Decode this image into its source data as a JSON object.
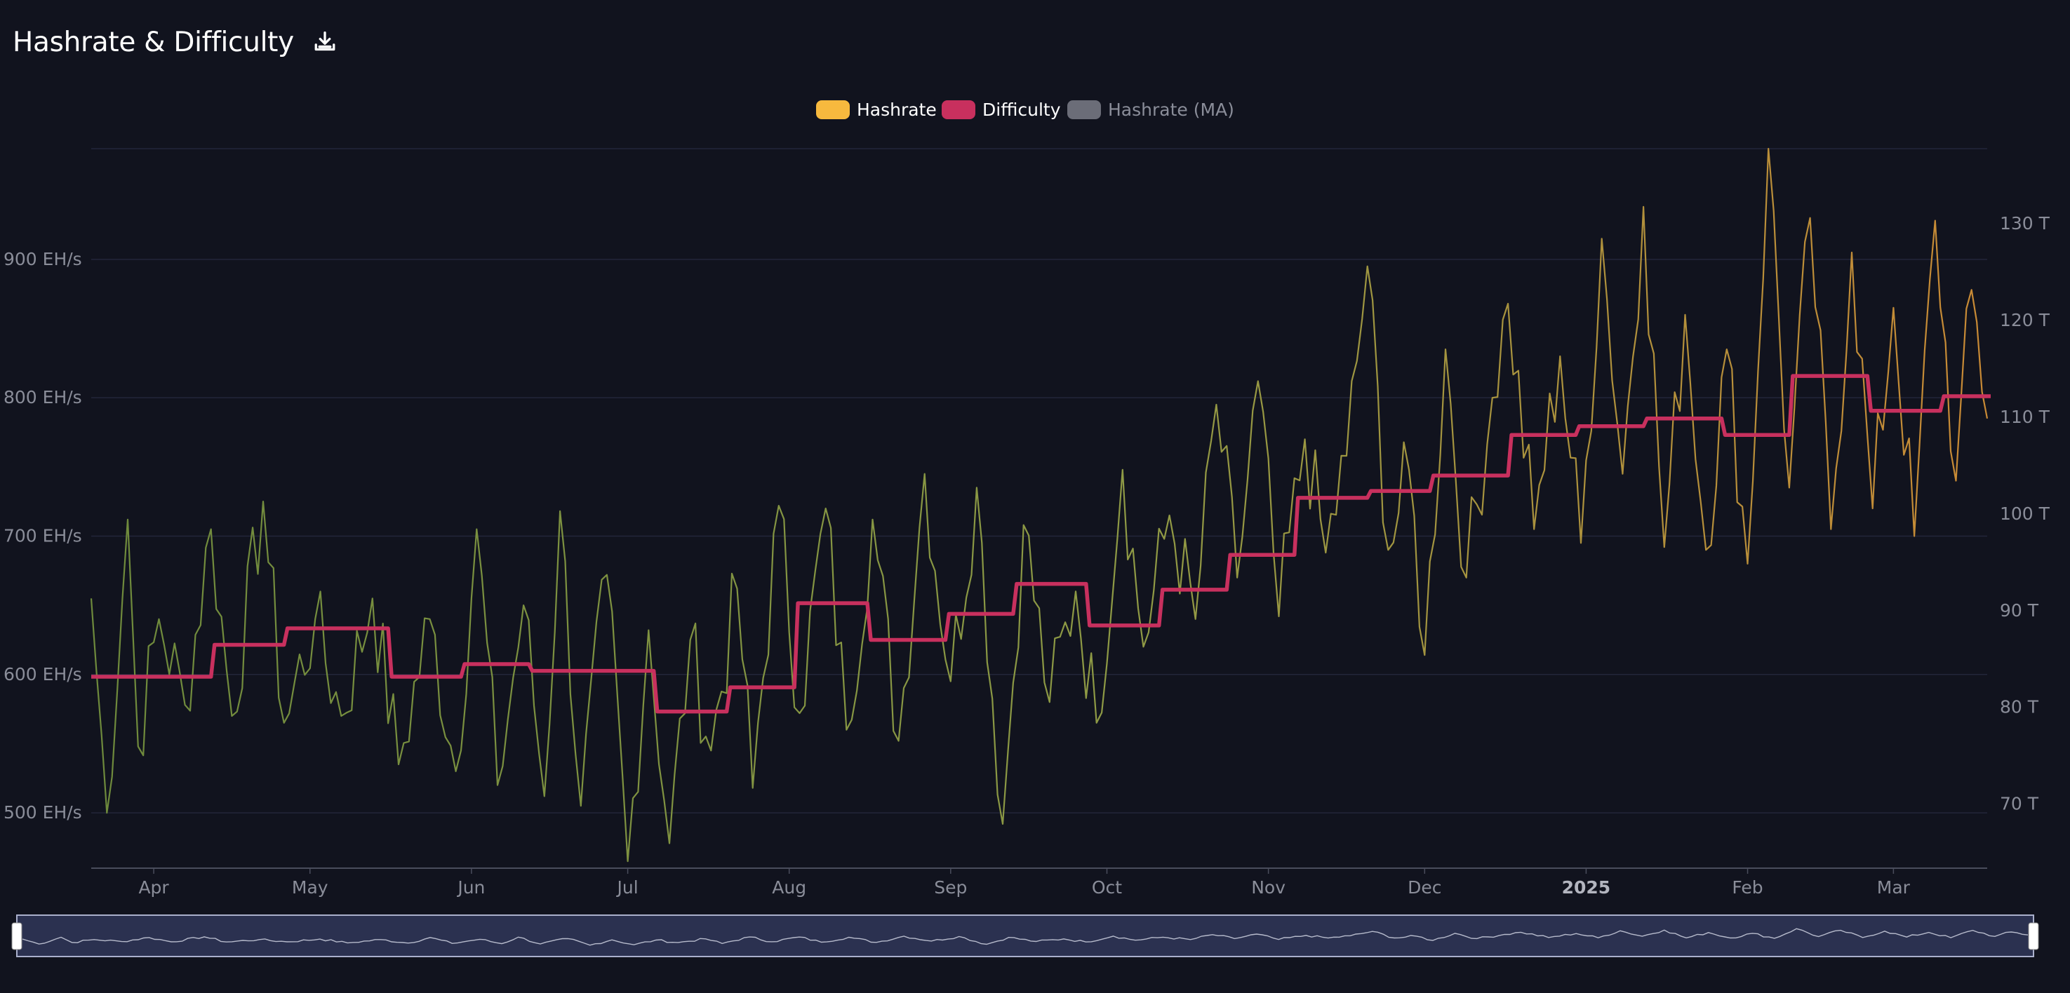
{
  "header": {
    "title": "Hashrate & Difficulty",
    "download_icon": "download-icon"
  },
  "colors": {
    "background": "#11131e",
    "hashrate_low": "#6e8a3c",
    "hashrate_high": "#c98a35",
    "difficulty": "#c8305e",
    "hashrate_ma": "#6b6d78",
    "grid": "#23263a",
    "navigator_fill": "#2b3150"
  },
  "chart_data": {
    "type": "line",
    "legend": [
      {
        "name": "Hashrate",
        "color": "#f7b93e",
        "active": true
      },
      {
        "name": "Difficulty",
        "color": "#c8305e",
        "active": true
      },
      {
        "name": "Hashrate (MA)",
        "color": "#6b6d78",
        "active": false
      }
    ],
    "legend_position": "top-center",
    "grid": true,
    "x_start": "2024-03-20",
    "x_end": "2025-03-19",
    "x_ticks": [
      {
        "date": "2024-04-01",
        "label": "Apr",
        "bold": false
      },
      {
        "date": "2024-05-01",
        "label": "May",
        "bold": false
      },
      {
        "date": "2024-06-01",
        "label": "Jun",
        "bold": false
      },
      {
        "date": "2024-07-01",
        "label": "Jul",
        "bold": false
      },
      {
        "date": "2024-08-01",
        "label": "Aug",
        "bold": false
      },
      {
        "date": "2024-09-01",
        "label": "Sep",
        "bold": false
      },
      {
        "date": "2024-10-01",
        "label": "Oct",
        "bold": false
      },
      {
        "date": "2024-11-01",
        "label": "Nov",
        "bold": false
      },
      {
        "date": "2024-12-01",
        "label": "Dec",
        "bold": false
      },
      {
        "date": "2025-01-01",
        "label": "2025",
        "bold": true
      },
      {
        "date": "2025-02-01",
        "label": "Feb",
        "bold": false
      },
      {
        "date": "2025-03-01",
        "label": "Mar",
        "bold": false
      }
    ],
    "y_left": {
      "unit": "EH/s",
      "range": [
        460,
        980
      ],
      "ticks": [
        {
          "value": 500,
          "label": "500 EH/s"
        },
        {
          "value": 600,
          "label": "600 EH/s"
        },
        {
          "value": 700,
          "label": "700 EH/s"
        },
        {
          "value": 800,
          "label": "800 EH/s"
        },
        {
          "value": 900,
          "label": "900 EH/s"
        }
      ]
    },
    "y_right": {
      "unit": "T",
      "range": [
        63.3,
        137.7
      ],
      "ticks": [
        {
          "value": 70,
          "label": "70 T"
        },
        {
          "value": 80,
          "label": "80 T"
        },
        {
          "value": 90,
          "label": "90 T"
        },
        {
          "value": 100,
          "label": "100 T"
        },
        {
          "value": 110,
          "label": "110 T"
        },
        {
          "value": 120,
          "label": "120 T"
        },
        {
          "value": 130,
          "label": "130 T"
        }
      ]
    },
    "series": [
      {
        "name": "Hashrate",
        "axis": "left",
        "anchors": [
          [
            "2024-03-20",
            655
          ],
          [
            "2024-03-23",
            500
          ],
          [
            "2024-03-27",
            712
          ],
          [
            "2024-03-29",
            548
          ],
          [
            "2024-04-02",
            640
          ],
          [
            "2024-04-07",
            578
          ],
          [
            "2024-04-12",
            705
          ],
          [
            "2024-04-16",
            570
          ],
          [
            "2024-04-22",
            725
          ],
          [
            "2024-04-26",
            565
          ],
          [
            "2024-05-02",
            640
          ],
          [
            "2024-05-07",
            570
          ],
          [
            "2024-05-13",
            655
          ],
          [
            "2024-05-18",
            535
          ],
          [
            "2024-05-24",
            640
          ],
          [
            "2024-05-29",
            530
          ],
          [
            "2024-06-02",
            705
          ],
          [
            "2024-06-06",
            520
          ],
          [
            "2024-06-11",
            650
          ],
          [
            "2024-06-15",
            512
          ],
          [
            "2024-06-18",
            718
          ],
          [
            "2024-06-22",
            505
          ],
          [
            "2024-06-27",
            672
          ],
          [
            "2024-07-01",
            465
          ],
          [
            "2024-07-05",
            632
          ],
          [
            "2024-07-09",
            478
          ],
          [
            "2024-07-13",
            625
          ],
          [
            "2024-07-17",
            545
          ],
          [
            "2024-07-22",
            662
          ],
          [
            "2024-07-25",
            518
          ],
          [
            "2024-07-30",
            722
          ],
          [
            "2024-08-03",
            572
          ],
          [
            "2024-08-08",
            720
          ],
          [
            "2024-08-12",
            560
          ],
          [
            "2024-08-17",
            712
          ],
          [
            "2024-08-22",
            552
          ],
          [
            "2024-08-27",
            745
          ],
          [
            "2024-09-01",
            595
          ],
          [
            "2024-09-06",
            735
          ],
          [
            "2024-09-11",
            492
          ],
          [
            "2024-09-15",
            708
          ],
          [
            "2024-09-20",
            580
          ],
          [
            "2024-09-25",
            660
          ],
          [
            "2024-09-29",
            565
          ],
          [
            "2024-10-04",
            748
          ],
          [
            "2024-10-08",
            620
          ],
          [
            "2024-10-13",
            715
          ],
          [
            "2024-10-18",
            640
          ],
          [
            "2024-10-22",
            795
          ],
          [
            "2024-10-26",
            670
          ],
          [
            "2024-10-30",
            812
          ],
          [
            "2024-11-03",
            642
          ],
          [
            "2024-11-08",
            770
          ],
          [
            "2024-11-12",
            688
          ],
          [
            "2024-11-16",
            758
          ],
          [
            "2024-11-20",
            895
          ],
          [
            "2024-11-24",
            690
          ],
          [
            "2024-11-28",
            748
          ],
          [
            "2024-12-01",
            614
          ],
          [
            "2024-12-05",
            835
          ],
          [
            "2024-12-09",
            670
          ],
          [
            "2024-12-14",
            800
          ],
          [
            "2024-12-17",
            868
          ],
          [
            "2024-12-22",
            705
          ],
          [
            "2024-12-27",
            830
          ],
          [
            "2024-12-31",
            695
          ],
          [
            "2025-01-04",
            915
          ],
          [
            "2025-01-08",
            745
          ],
          [
            "2025-01-12",
            938
          ],
          [
            "2025-01-16",
            692
          ],
          [
            "2025-01-20",
            860
          ],
          [
            "2025-01-24",
            690
          ],
          [
            "2025-01-28",
            835
          ],
          [
            "2025-02-01",
            680
          ],
          [
            "2025-02-05",
            980
          ],
          [
            "2025-02-09",
            735
          ],
          [
            "2025-02-13",
            930
          ],
          [
            "2025-02-17",
            705
          ],
          [
            "2025-02-21",
            905
          ],
          [
            "2025-02-25",
            720
          ],
          [
            "2025-03-01",
            865
          ],
          [
            "2025-03-05",
            700
          ],
          [
            "2025-03-09",
            928
          ],
          [
            "2025-03-13",
            740
          ],
          [
            "2025-03-16",
            878
          ],
          [
            "2025-03-19",
            785
          ]
        ]
      },
      {
        "name": "Difficulty",
        "axis": "right",
        "steps": [
          [
            "2024-03-20",
            83.1
          ],
          [
            "2024-04-12",
            86.4
          ],
          [
            "2024-04-26",
            88.1
          ],
          [
            "2024-05-16",
            83.1
          ],
          [
            "2024-05-30",
            84.4
          ],
          [
            "2024-06-12",
            83.7
          ],
          [
            "2024-07-06",
            79.5
          ],
          [
            "2024-07-20",
            82.0
          ],
          [
            "2024-08-02",
            90.7
          ],
          [
            "2024-08-16",
            86.9
          ],
          [
            "2024-08-31",
            89.6
          ],
          [
            "2024-09-13",
            92.7
          ],
          [
            "2024-09-27",
            88.4
          ],
          [
            "2024-10-11",
            92.1
          ],
          [
            "2024-10-24",
            95.7
          ],
          [
            "2024-11-06",
            101.6
          ],
          [
            "2024-11-20",
            102.3
          ],
          [
            "2024-12-02",
            103.9
          ],
          [
            "2024-12-17",
            108.1
          ],
          [
            "2024-12-30",
            109.0
          ],
          [
            "2025-01-12",
            109.8
          ],
          [
            "2025-01-27",
            108.1
          ],
          [
            "2025-02-09",
            114.2
          ],
          [
            "2025-02-24",
            110.6
          ],
          [
            "2025-03-10",
            112.1
          ],
          [
            "2025-03-19",
            112.1
          ]
        ]
      },
      {
        "name": "Hashrate (MA)",
        "axis": "left",
        "hidden": true
      }
    ],
    "navigator": {
      "range_start": "2024-03-20",
      "range_end": "2025-03-19"
    }
  }
}
